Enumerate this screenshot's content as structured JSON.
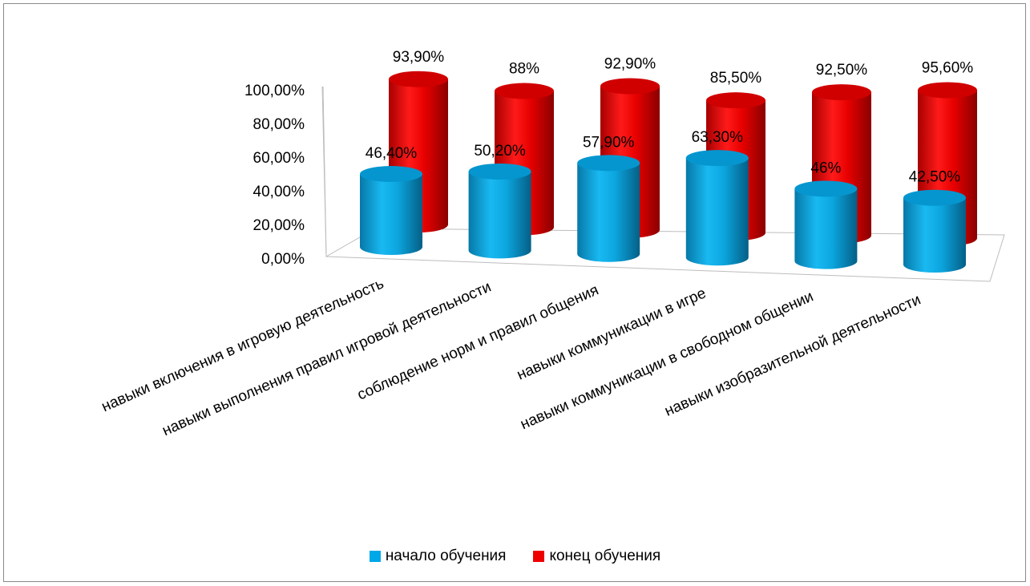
{
  "chart_data": {
    "type": "bar",
    "style": "3d-cylinder",
    "categories": [
      "навыки включения в игровую деятельность",
      "навыки выполнения правил игровой деятельности",
      "соблюдение норм и правил общения",
      "навыки коммуникации в игре",
      "навыки коммуникации в свободном общении",
      "навыки изобразительной деятельности"
    ],
    "series": [
      {
        "name": "начало обучения",
        "color": "#00a8e8",
        "values": [
          46.4,
          50.2,
          57.9,
          63.3,
          46,
          42.5
        ],
        "labels": [
          "46,40%",
          "50,20%",
          "57,90%",
          "63,30%",
          "46%",
          "42,50%"
        ]
      },
      {
        "name": "конец обучения",
        "color": "#ee0000",
        "values": [
          93.9,
          88,
          92.9,
          85.5,
          92.5,
          95.6
        ],
        "labels": [
          "93,90%",
          "88%",
          "92,90%",
          "85,50%",
          "92,50%",
          "95,60%"
        ]
      }
    ],
    "y_ticks": [
      "0,00%",
      "20,00%",
      "40,00%",
      "60,00%",
      "80,00%",
      "100,00%"
    ],
    "ylim": [
      0,
      100
    ],
    "legend_position": "bottom",
    "grid": false
  }
}
